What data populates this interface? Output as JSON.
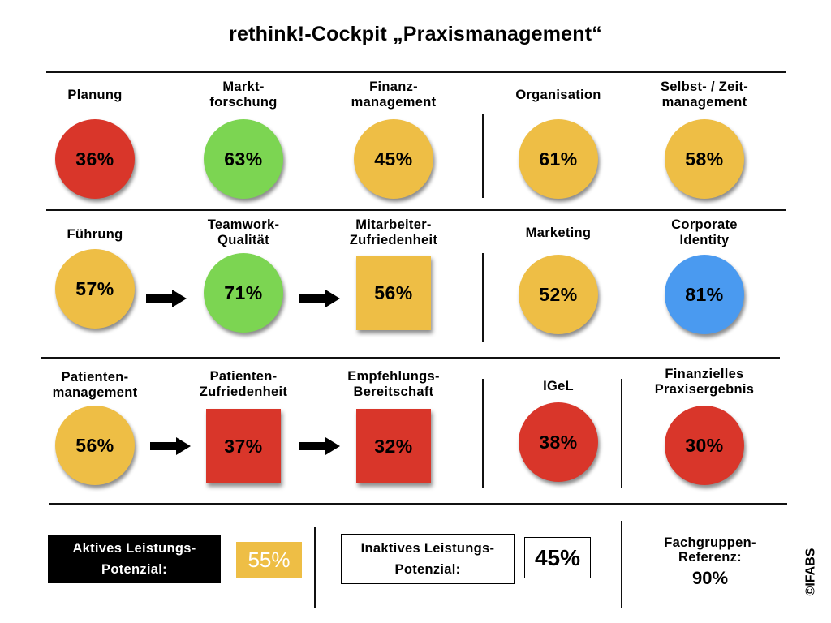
{
  "title": "rethink!-Cockpit „Praxismanagement“",
  "colors": {
    "red": "#d9362a",
    "green": "#7cd552",
    "yellow": "#eebe45",
    "blue": "#4a9af0"
  },
  "rows": [
    {
      "items": [
        {
          "label": "Planung",
          "value": "36%",
          "color": "red",
          "shape": "circle"
        },
        {
          "label": "Markt-\nforschung",
          "value": "63%",
          "color": "green",
          "shape": "circle"
        },
        {
          "label": "Finanz-\nmanagement",
          "value": "45%",
          "color": "yellow",
          "shape": "circle"
        },
        {
          "label": "Organisation",
          "value": "61%",
          "color": "yellow",
          "shape": "circle"
        },
        {
          "label": "Selbst- / Zeit-\nmanagement",
          "value": "58%",
          "color": "yellow",
          "shape": "circle"
        }
      ]
    },
    {
      "items": [
        {
          "label": "Führung",
          "value": "57%",
          "color": "yellow",
          "shape": "circle"
        },
        {
          "label": "Teamwork-\nQualität",
          "value": "71%",
          "color": "green",
          "shape": "circle"
        },
        {
          "label": "Mitarbeiter-\nZufriedenheit",
          "value": "56%",
          "color": "yellow",
          "shape": "square"
        },
        {
          "label": "Marketing",
          "value": "52%",
          "color": "yellow",
          "shape": "circle"
        },
        {
          "label": "Corporate\nIdentity",
          "value": "81%",
          "color": "blue",
          "shape": "circle"
        }
      ]
    },
    {
      "items": [
        {
          "label": "Patienten-\nmanagement",
          "value": "56%",
          "color": "yellow",
          "shape": "circle"
        },
        {
          "label": "Patienten-\nZufriedenheit",
          "value": "37%",
          "color": "red",
          "shape": "square"
        },
        {
          "label": "Empfehlungs-\nBereitschaft",
          "value": "32%",
          "color": "red",
          "shape": "square"
        },
        {
          "label": "IGeL",
          "value": "38%",
          "color": "red",
          "shape": "circle"
        },
        {
          "label": "Finanzielles\nPraxisergebnis",
          "value": "30%",
          "color": "red",
          "shape": "circle"
        }
      ]
    }
  ],
  "footer": {
    "active_label": "Aktives Leistungs-\nPotenzial:",
    "active_value": "55%",
    "inactive_label": "Inaktives Leistungs-\nPotenzial:",
    "inactive_value": "45%",
    "reference_label": "Fachgruppen-\nReferenz:",
    "reference_value": "90%"
  },
  "copyright": "©IFABS"
}
